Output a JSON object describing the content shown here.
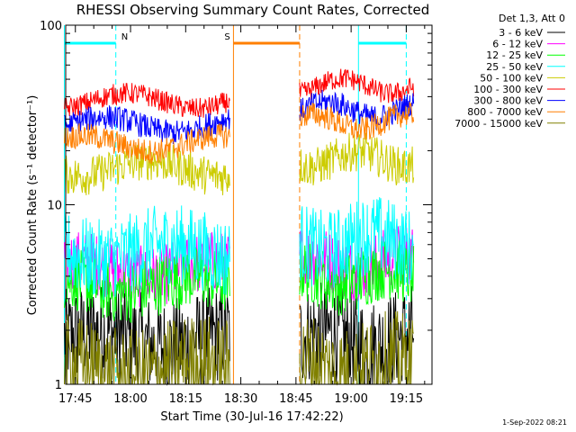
{
  "chart_data": {
    "type": "line",
    "title": "RHESSI Observing Summary Count Rates, Corrected",
    "xlabel": "Start Time (30-Jul-16 17:42:22)",
    "ylabel": "Corrected Count Rate (s⁻¹ detector⁻¹)",
    "y_scale": "log",
    "ylim": [
      1,
      100
    ],
    "xlim": [
      "17:42:22",
      "19:22:00"
    ],
    "x_ticks": [
      "17:45",
      "18:00",
      "18:15",
      "18:30",
      "18:45",
      "19:00",
      "19:15"
    ],
    "y_ticks": [
      "1",
      "10",
      "100"
    ],
    "grid": false,
    "legend_position": "top-right outside plot",
    "legend_title": "Det 1,3, Att 0",
    "timestamp": "1-Sep-2022 08:21",
    "markers": [
      {
        "label": "N",
        "color": "#00ffff",
        "start": "17:42",
        "end": "17:56"
      },
      {
        "label": "S",
        "color": "#ff7f00",
        "start": "18:28",
        "end": "18:46"
      },
      {
        "label": "",
        "color": "#00ffff",
        "start": "19:02",
        "end": "19:15"
      }
    ],
    "data_gaps": [
      [
        "18:27",
        "18:46"
      ]
    ],
    "series": [
      {
        "name": "3 - 6 keV",
        "color": "#000000",
        "segments": [
          {
            "start": "17:42",
            "end": "18:27",
            "level": 1.8
          },
          {
            "start": "18:46",
            "end": "19:17",
            "level": 1.8
          }
        ]
      },
      {
        "name": "6 - 12 keV",
        "color": "#ff00ff",
        "segments": [
          {
            "start": "17:42",
            "end": "18:27",
            "level": 4.4
          },
          {
            "start": "18:46",
            "end": "19:17",
            "level": 4.8
          }
        ]
      },
      {
        "name": "12 - 25 keV",
        "color": "#00ff00",
        "segments": [
          {
            "start": "17:42",
            "end": "18:27",
            "level": 3.6
          },
          {
            "start": "18:46",
            "end": "19:17",
            "level": 4.0
          }
        ]
      },
      {
        "name": "25 - 50 keV",
        "color": "#00ffff",
        "segments": [
          {
            "start": "17:42",
            "end": "18:27",
            "level": 5.5
          },
          {
            "start": "18:46",
            "end": "19:17",
            "level": 6.2
          }
        ]
      },
      {
        "name": "50 - 100 keV",
        "color": "#cccc00",
        "segments": [
          {
            "start": "17:42",
            "end": "18:27",
            "level": 16
          },
          {
            "start": "18:46",
            "end": "19:17",
            "level": 18
          }
        ]
      },
      {
        "name": "100 - 300 keV",
        "color": "#ff0000",
        "segments": [
          {
            "start": "17:42",
            "end": "18:27",
            "level": 38
          },
          {
            "start": "18:46",
            "end": "19:17",
            "level": 46
          }
        ]
      },
      {
        "name": "300 - 800 keV",
        "color": "#0000ff",
        "segments": [
          {
            "start": "17:42",
            "end": "18:27",
            "level": 28
          },
          {
            "start": "18:46",
            "end": "19:17",
            "level": 34
          }
        ]
      },
      {
        "name": "800 - 7000 keV",
        "color": "#ff7f00",
        "segments": [
          {
            "start": "17:42",
            "end": "18:27",
            "level": 22
          },
          {
            "start": "18:46",
            "end": "19:17",
            "level": 29
          }
        ]
      },
      {
        "name": "7000 - 15000 keV",
        "color": "#808000",
        "segments": [
          {
            "start": "17:42",
            "end": "18:27",
            "level": 1.2
          },
          {
            "start": "18:46",
            "end": "19:17",
            "level": 1.25
          }
        ]
      }
    ]
  }
}
